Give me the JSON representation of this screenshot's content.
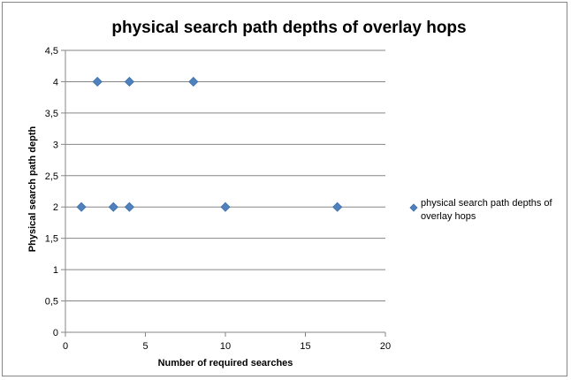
{
  "chart_data": {
    "type": "scatter",
    "title": "physical search path depths of overlay hops",
    "xlabel": "Number of required searches",
    "ylabel": "Physical search path depth",
    "xlim": [
      0,
      20
    ],
    "ylim": [
      0,
      4.5
    ],
    "x_ticks": [
      "0",
      "5",
      "10",
      "15",
      "20"
    ],
    "y_ticks": [
      "0",
      "0,5",
      "1",
      "1,5",
      "2",
      "2,5",
      "3",
      "3,5",
      "4",
      "4,5"
    ],
    "grid": "horizontal",
    "legend_position": "right",
    "marker": "diamond",
    "series": [
      {
        "name": "physical search path depths of overlay hops",
        "color": "#4F81BD",
        "points": [
          {
            "x": 1,
            "y": 2
          },
          {
            "x": 2,
            "y": 4
          },
          {
            "x": 3,
            "y": 2
          },
          {
            "x": 4,
            "y": 2
          },
          {
            "x": 4,
            "y": 4
          },
          {
            "x": 8,
            "y": 4
          },
          {
            "x": 10,
            "y": 2
          },
          {
            "x": 17,
            "y": 2
          }
        ]
      }
    ],
    "colors": {
      "gridline": "#868686",
      "axis": "#868686",
      "frame": "#868686"
    }
  }
}
